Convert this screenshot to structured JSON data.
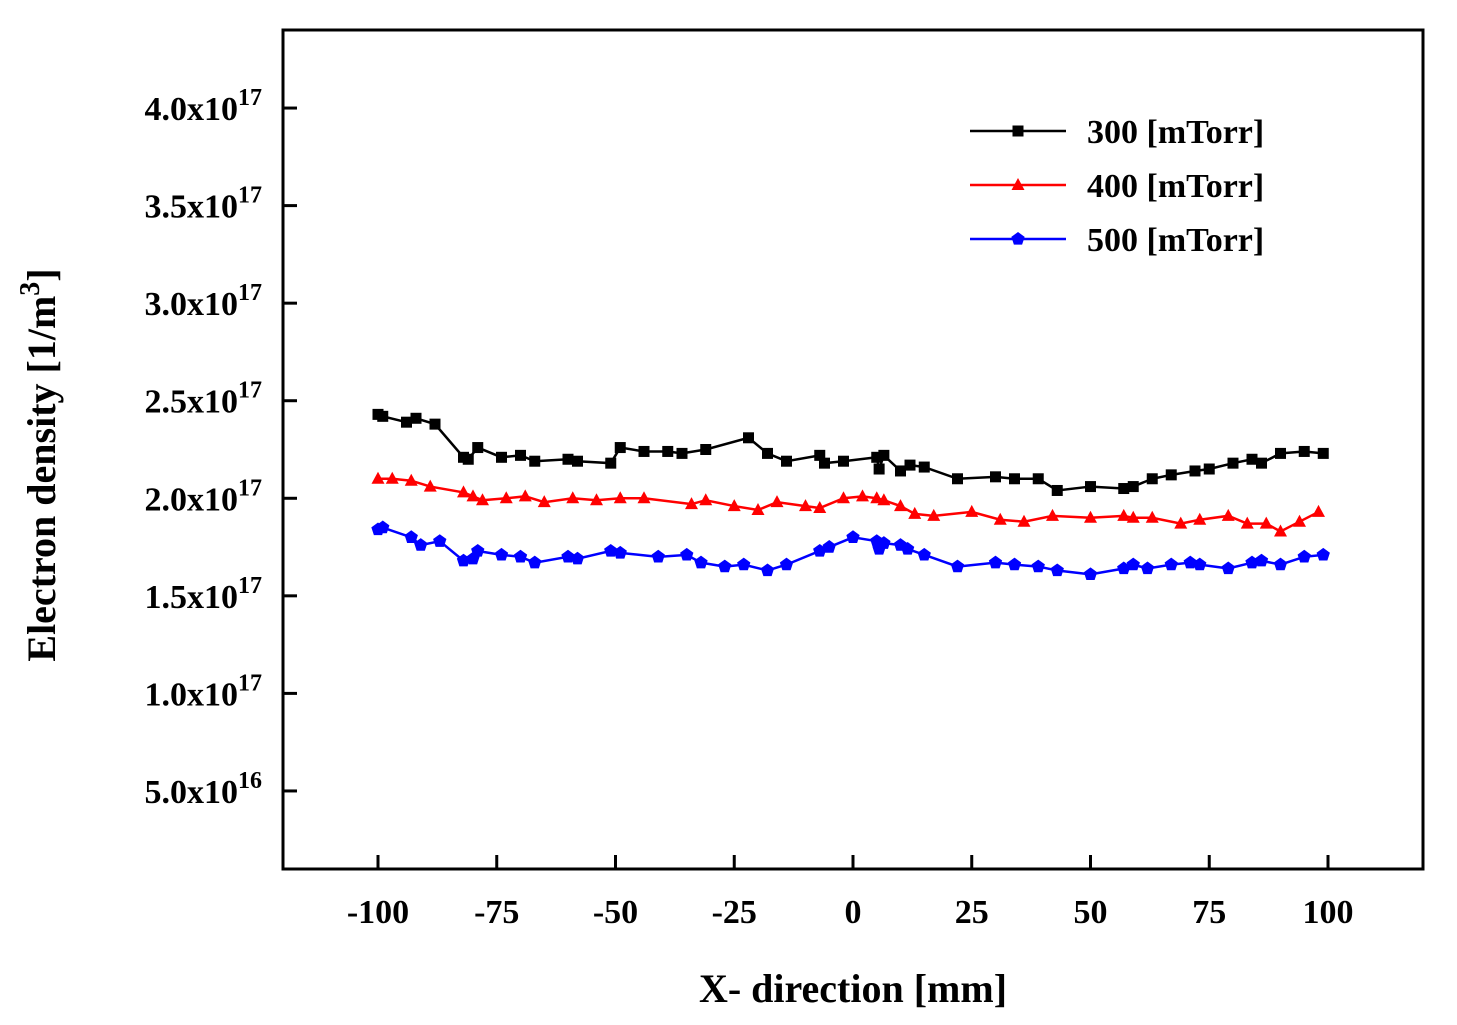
{
  "chart_data": {
    "type": "line",
    "title": "",
    "xlabel": "X- direction [mm]",
    "ylabel": {
      "main": "Electron density [1/m",
      "sup": "3",
      "end": "]"
    },
    "xlim": [
      -120,
      120
    ],
    "ylim": [
      1e+16,
      4.4e+17
    ],
    "x_ticks": [
      -100,
      -75,
      -50,
      -25,
      0,
      25,
      50,
      75,
      100
    ],
    "x_tick_labels": [
      "-100",
      "-75",
      "-50",
      "-25",
      "0",
      "25",
      "50",
      "75",
      "100"
    ],
    "y_ticks": [
      5e+16,
      1e+17,
      1.5e+17,
      2e+17,
      2.5e+17,
      3e+17,
      3.5e+17,
      4e+17
    ],
    "y_tick_labels": [
      {
        "mant": "5.0x10",
        "exp": "16"
      },
      {
        "mant": "1.0x10",
        "exp": "17"
      },
      {
        "mant": "1.5x10",
        "exp": "17"
      },
      {
        "mant": "2.0x10",
        "exp": "17"
      },
      {
        "mant": "2.5x10",
        "exp": "17"
      },
      {
        "mant": "3.0x10",
        "exp": "17"
      },
      {
        "mant": "3.5x10",
        "exp": "17"
      },
      {
        "mant": "4.0x10",
        "exp": "17"
      }
    ],
    "grid": false,
    "legend_position": "top-right",
    "series": [
      {
        "name": "300 [mTorr]",
        "color": "#000000",
        "marker": "square",
        "x": [
          -100,
          -99,
          -94,
          -92,
          -88,
          -82,
          -81,
          -79,
          -74,
          -70,
          -67,
          -60,
          -58,
          -51,
          -49,
          -44,
          -39,
          -36,
          -31,
          -22,
          -18,
          -14,
          -7,
          -6,
          -2,
          5,
          5.5,
          6.5,
          10,
          12,
          15,
          22,
          30,
          34,
          39,
          43,
          50,
          57,
          59,
          63,
          67,
          72,
          75,
          80,
          84,
          86,
          90,
          95,
          99
        ],
        "y": [
          2.43e+17,
          2.42e+17,
          2.39e+17,
          2.41e+17,
          2.38e+17,
          2.21e+17,
          2.2e+17,
          2.26e+17,
          2.21e+17,
          2.22e+17,
          2.19e+17,
          2.2e+17,
          2.19e+17,
          2.18e+17,
          2.26e+17,
          2.24e+17,
          2.24e+17,
          2.23e+17,
          2.25e+17,
          2.31e+17,
          2.23e+17,
          2.19e+17,
          2.22e+17,
          2.18e+17,
          2.19e+17,
          2.21e+17,
          2.15e+17,
          2.22e+17,
          2.14e+17,
          2.17e+17,
          2.16e+17,
          2.1e+17,
          2.11e+17,
          2.1e+17,
          2.1e+17,
          2.04e+17,
          2.06e+17,
          2.05e+17,
          2.06e+17,
          2.1e+17,
          2.12e+17,
          2.14e+17,
          2.15e+17,
          2.18e+17,
          2.2e+17,
          2.18e+17,
          2.23e+17,
          2.24e+17,
          2.23e+17
        ]
      },
      {
        "name": "400 [mTorr]",
        "color": "#ff0000",
        "marker": "triangle",
        "x": [
          -100,
          -97,
          -93,
          -89,
          -82,
          -80,
          -78,
          -73,
          -69,
          -65,
          -59,
          -54,
          -49,
          -44,
          -34,
          -31,
          -25,
          -20,
          -16,
          -10,
          -7,
          -2,
          2,
          5,
          6.5,
          10,
          13,
          17,
          25,
          31,
          36,
          42,
          50,
          57,
          59,
          63,
          69,
          73,
          79,
          83,
          87,
          90,
          94,
          98
        ],
        "y": [
          2.1e+17,
          2.1e+17,
          2.09e+17,
          2.06e+17,
          2.03e+17,
          2.01e+17,
          1.99e+17,
          2e+17,
          2.01e+17,
          1.98e+17,
          2e+17,
          1.99e+17,
          2e+17,
          2e+17,
          1.97e+17,
          1.99e+17,
          1.96e+17,
          1.94e+17,
          1.98e+17,
          1.96e+17,
          1.95e+17,
          2e+17,
          2.01e+17,
          2e+17,
          1.99e+17,
          1.96e+17,
          1.92e+17,
          1.91e+17,
          1.93e+17,
          1.89e+17,
          1.88e+17,
          1.91e+17,
          1.9e+17,
          1.91e+17,
          1.9e+17,
          1.9e+17,
          1.87e+17,
          1.89e+17,
          1.91e+17,
          1.87e+17,
          1.87e+17,
          1.83e+17,
          1.88e+17,
          1.93e+17
        ]
      },
      {
        "name": "500 [mTorr]",
        "color": "#0000ff",
        "marker": "pentagon",
        "x": [
          -100,
          -99,
          -93,
          -91,
          -87,
          -82,
          -80,
          -79,
          -74,
          -70,
          -67,
          -60,
          -58,
          -51,
          -49,
          -41,
          -35,
          -32,
          -27,
          -23,
          -18,
          -14,
          -7,
          -5,
          0,
          5,
          5.5,
          6.5,
          10,
          11.5,
          15,
          22,
          30,
          34,
          39,
          43,
          50,
          57,
          59,
          62,
          67,
          71,
          73,
          79,
          84,
          86,
          90,
          95,
          99
        ],
        "y": [
          1.84e+17,
          1.85e+17,
          1.8e+17,
          1.76e+17,
          1.78e+17,
          1.68e+17,
          1.69e+17,
          1.73e+17,
          1.71e+17,
          1.7e+17,
          1.67e+17,
          1.7e+17,
          1.69e+17,
          1.73e+17,
          1.72e+17,
          1.7e+17,
          1.71e+17,
          1.67e+17,
          1.65e+17,
          1.66e+17,
          1.63e+17,
          1.66e+17,
          1.73e+17,
          1.75e+17,
          1.8e+17,
          1.78e+17,
          1.74e+17,
          1.77e+17,
          1.76e+17,
          1.74e+17,
          1.71e+17,
          1.65e+17,
          1.67e+17,
          1.66e+17,
          1.65e+17,
          1.63e+17,
          1.61e+17,
          1.64e+17,
          1.66e+17,
          1.64e+17,
          1.66e+17,
          1.67e+17,
          1.66e+17,
          1.64e+17,
          1.67e+17,
          1.68e+17,
          1.66e+17,
          1.7e+17,
          1.71e+17
        ]
      }
    ]
  }
}
